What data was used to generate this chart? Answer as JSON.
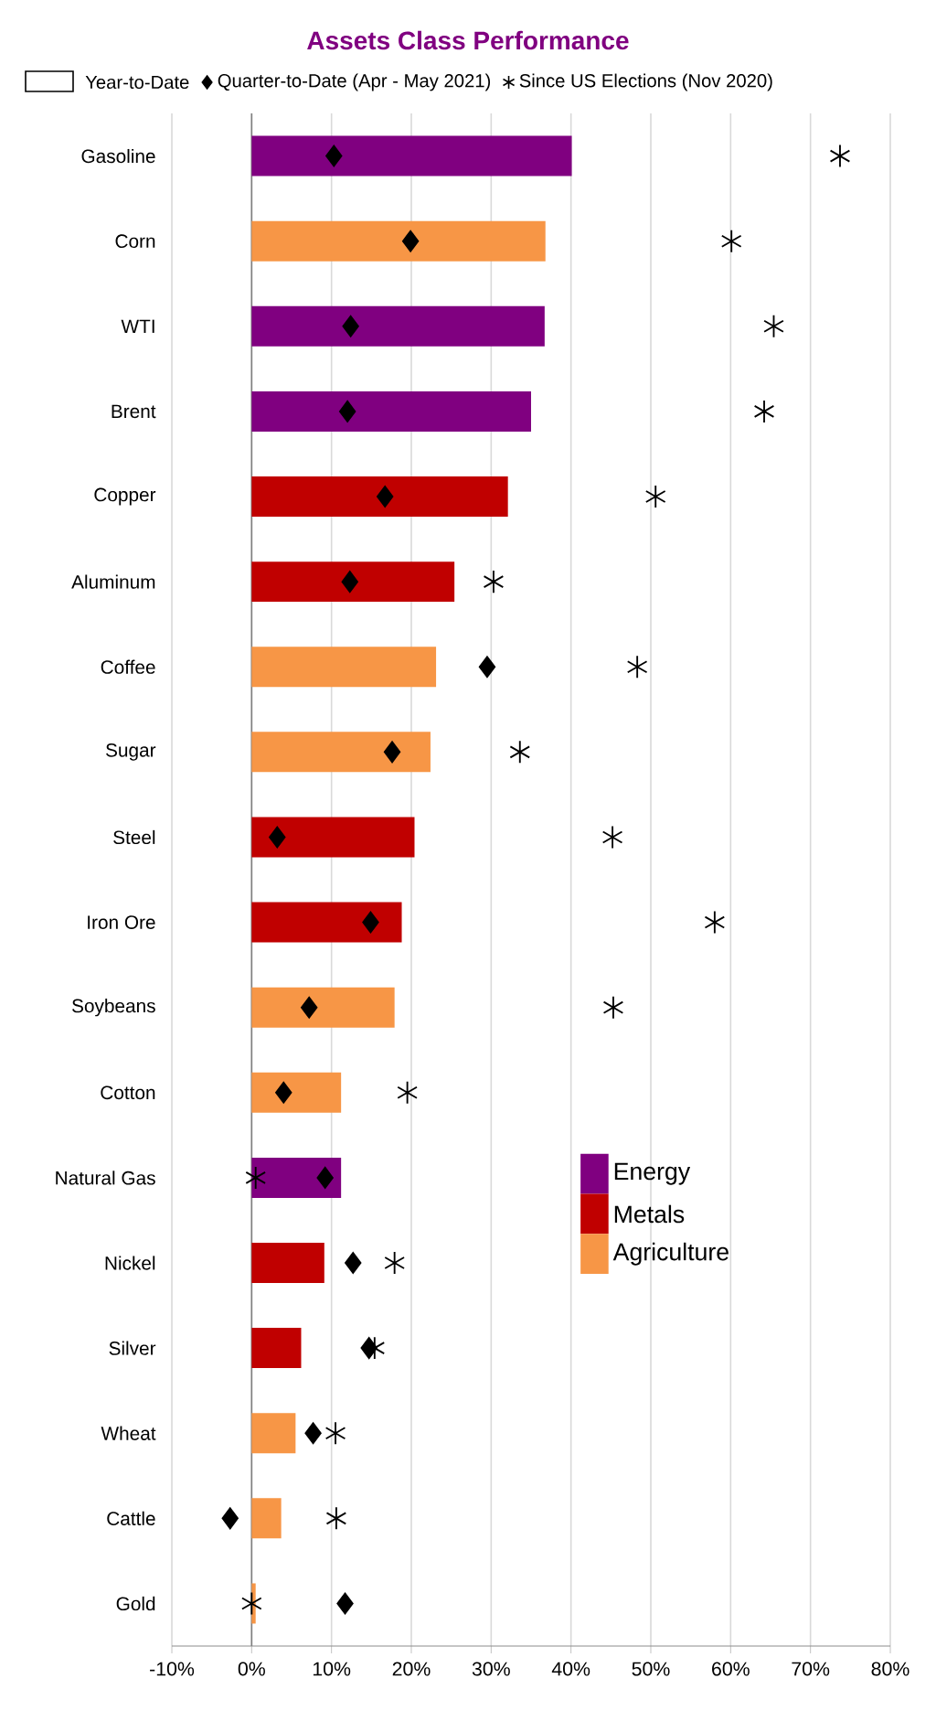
{
  "chart_data": {
    "type": "bar",
    "orientation": "horizontal",
    "title": "Assets Class Performance",
    "legend_title": "Year-to-Date",
    "legend": "top",
    "grid": "x",
    "categories": [
      "Gasoline",
      "Corn",
      "WTI",
      "Brent",
      "Copper",
      "Aluminum",
      "Coffee",
      "Sugar",
      "Steel",
      "Iron Ore",
      "Soybeans",
      "Cotton",
      "Natural Gas",
      "Nickel",
      "Silver",
      "Wheat",
      "Cattle",
      "Gold"
    ],
    "series": [
      {
        "name": "Energy",
        "color": "#800080",
        "values": [
          40.1,
          null,
          36.7,
          35.0,
          null,
          null,
          null,
          null,
          null,
          null,
          null,
          null,
          11.2,
          null,
          null,
          null,
          null,
          null
        ]
      },
      {
        "name": "Metals",
        "color": "#c00000",
        "values": [
          null,
          null,
          null,
          null,
          32.1,
          25.4,
          null,
          null,
          20.4,
          18.8,
          null,
          null,
          null,
          9.1,
          6.2,
          null,
          null,
          null
        ]
      },
      {
        "name": "Agriculture",
        "color": "#f79646",
        "values": [
          null,
          36.8,
          null,
          null,
          null,
          null,
          23.1,
          22.4,
          null,
          null,
          17.9,
          11.2,
          null,
          null,
          null,
          5.5,
          3.7,
          0.5
        ]
      },
      {
        "name": "Quarter-to-Date (Apr - May 2021)",
        "type": "scatter",
        "marker": "diamond",
        "color": "#000000",
        "values": [
          10.3,
          19.9,
          12.4,
          12.0,
          16.7,
          12.3,
          29.5,
          17.6,
          3.2,
          14.9,
          7.2,
          4.0,
          9.2,
          12.7,
          14.7,
          7.7,
          -2.7,
          11.7
        ]
      },
      {
        "name": "Since US Elections (Nov 2020)",
        "type": "scatter",
        "marker": "cross",
        "color": "#000000",
        "values": [
          73.7,
          60.1,
          65.4,
          64.2,
          50.6,
          30.3,
          48.3,
          33.6,
          45.2,
          58.0,
          45.3,
          19.5,
          0.5,
          17.9,
          15.4,
          10.5,
          10.6,
          0.0
        ]
      }
    ],
    "xlim": [
      -10,
      80
    ],
    "xticks": [
      {
        "value": -10,
        "label": "-10%"
      },
      {
        "value": 0,
        "label": "0%"
      },
      {
        "value": 10,
        "label": "10%"
      },
      {
        "value": 20,
        "label": "20%"
      },
      {
        "value": 30,
        "label": "30%"
      },
      {
        "value": 40,
        "label": "40%"
      },
      {
        "value": 50,
        "label": "50%"
      },
      {
        "value": 60,
        "label": "60%"
      },
      {
        "value": 70,
        "label": "70%"
      },
      {
        "value": 80,
        "label": "80%"
      }
    ]
  }
}
